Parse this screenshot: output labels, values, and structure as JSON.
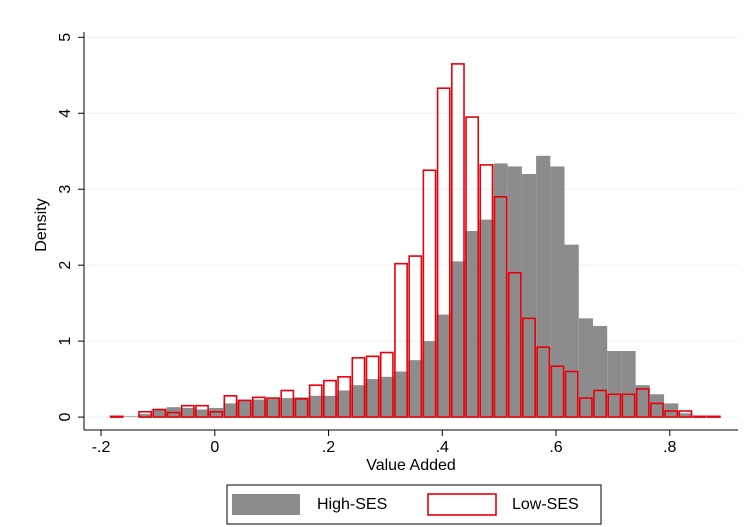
{
  "chart_data": {
    "type": "histogram",
    "x_label": "Value Added",
    "y_label": "Density",
    "bins": [
      -0.21,
      -0.185,
      -0.16,
      -0.135,
      -0.11,
      -0.085,
      -0.06,
      -0.035,
      -0.01,
      0.015,
      0.04,
      0.065,
      0.09,
      0.115,
      0.14,
      0.165,
      0.19,
      0.215,
      0.24,
      0.265,
      0.29,
      0.315,
      0.34,
      0.365,
      0.39,
      0.415,
      0.44,
      0.465,
      0.49,
      0.515,
      0.54,
      0.565,
      0.59,
      0.615,
      0.64,
      0.665,
      0.69,
      0.715,
      0.74,
      0.765,
      0.79,
      0.815,
      0.84,
      0.865,
      0.89
    ],
    "series": [
      {
        "name": "High-SES",
        "color": "#8c8c8c",
        "style": "filled",
        "values": [
          0,
          0,
          0.01,
          0.04,
          0.1,
          0.13,
          0.12,
          0.1,
          0.12,
          0.18,
          0.22,
          0.23,
          0.24,
          0.25,
          0.26,
          0.28,
          0.28,
          0.35,
          0.42,
          0.5,
          0.53,
          0.6,
          0.75,
          1.0,
          1.35,
          2.05,
          2.45,
          2.6,
          3.34,
          3.3,
          3.2,
          3.44,
          3.3,
          2.27,
          1.3,
          1.2,
          0.87,
          0.87,
          0.42,
          0.3,
          0.18,
          0.05,
          0.01,
          0
        ]
      },
      {
        "name": "Low-SES",
        "color": "#e8000b",
        "style": "outline",
        "values": [
          0,
          0.01,
          0,
          0.07,
          0.1,
          0.06,
          0.15,
          0.15,
          0.07,
          0.28,
          0.22,
          0.26,
          0.25,
          0.35,
          0.24,
          0.42,
          0.48,
          0.53,
          0.78,
          0.8,
          0.85,
          2.02,
          2.12,
          3.25,
          4.33,
          4.65,
          3.95,
          3.32,
          2.9,
          1.9,
          1.3,
          0.92,
          0.67,
          0.6,
          0.25,
          0.35,
          0.3,
          0.3,
          0.37,
          0.18,
          0.08,
          0.08,
          0.01,
          0.01
        ]
      }
    ],
    "xlim": [
      -0.23,
      0.92
    ],
    "ylim": [
      -0.17,
      5.07
    ],
    "xticks": [
      {
        "value": -0.2,
        "label": "-.2"
      },
      0,
      {
        "value": 0.2,
        "label": ".2"
      },
      {
        "value": 0.4,
        "label": ".4"
      },
      {
        "value": 0.6,
        "label": ".6"
      },
      {
        "value": 0.8,
        "label": ".8"
      }
    ],
    "yticks": [
      0,
      1,
      2,
      3,
      4,
      5
    ],
    "grid": true,
    "legend": "bottom"
  }
}
